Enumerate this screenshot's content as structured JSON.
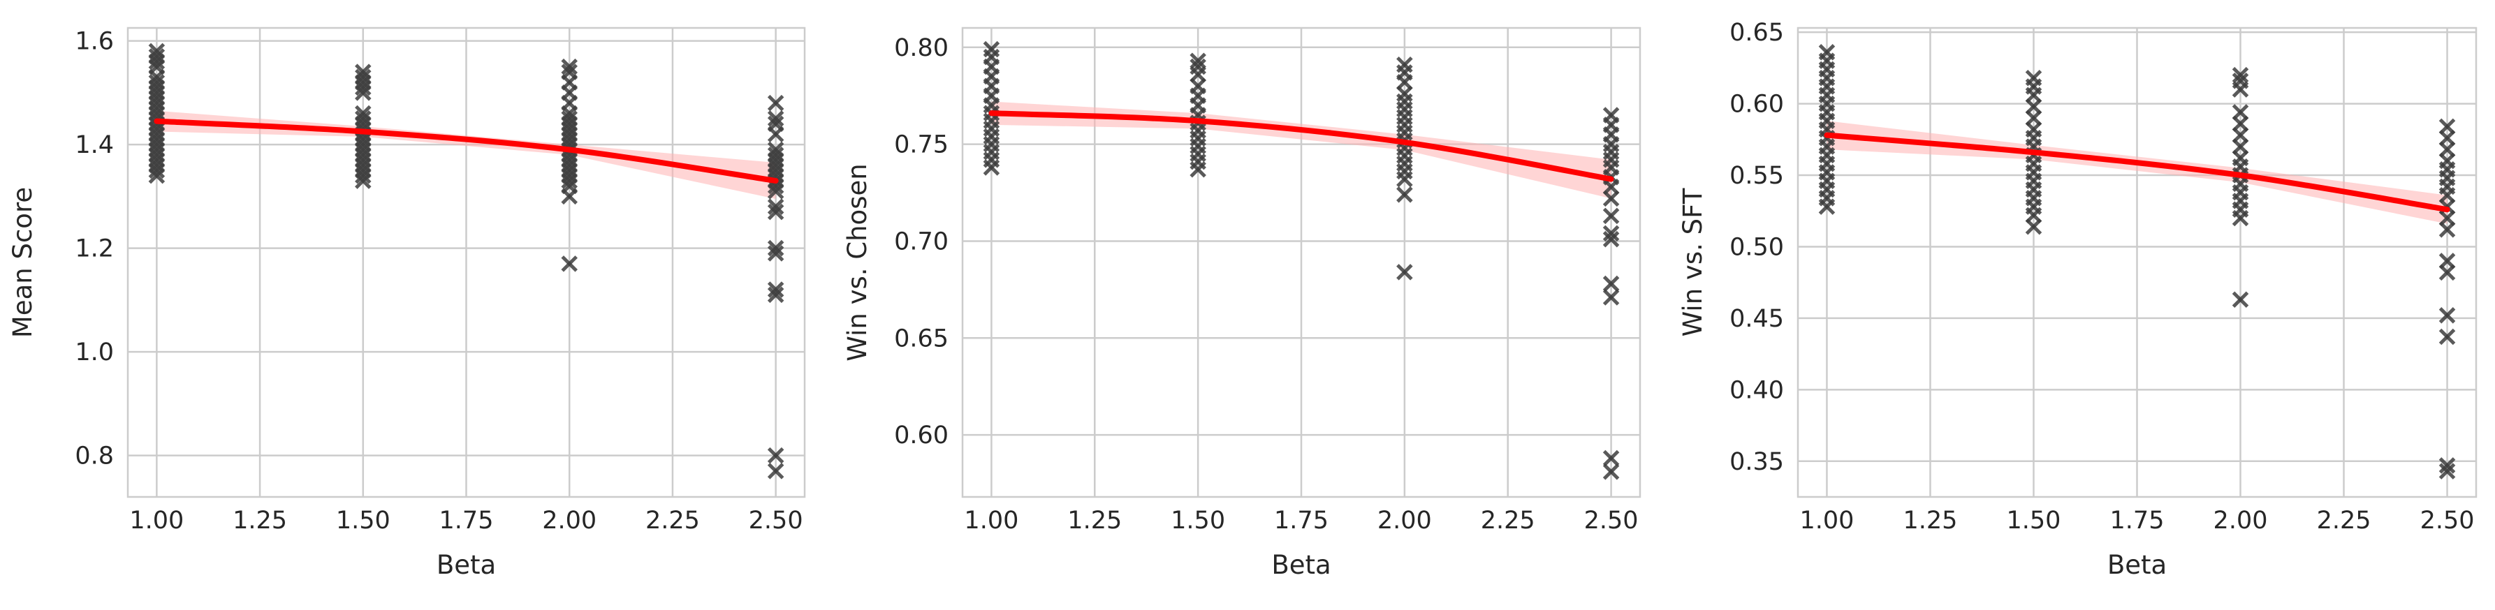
{
  "style": {
    "grid_color": "#cccccc",
    "axis_color": "#cccccc",
    "marker_color": "#3d3d3d",
    "trend_color": "#ff0000",
    "band_color": "#ffb3b3",
    "marker": "x"
  },
  "chart_data": [
    {
      "type": "scatter",
      "title": "",
      "xlabel": "Beta",
      "ylabel": "Mean Score",
      "xlim": [
        0.93,
        2.57
      ],
      "ylim": [
        0.72,
        1.625
      ],
      "xticks": [
        1.0,
        1.25,
        1.5,
        1.75,
        2.0,
        2.25,
        2.5
      ],
      "xtick_labels": [
        "1.00",
        "1.25",
        "1.50",
        "1.75",
        "2.00",
        "2.25",
        "2.50"
      ],
      "yticks": [
        0.8,
        1.0,
        1.2,
        1.4,
        1.6
      ],
      "ytick_labels": [
        "0.8",
        "1.0",
        "1.2",
        "1.4",
        "1.6"
      ],
      "grid": true,
      "points": [
        {
          "x": 1.0,
          "y": [
            1.34,
            1.35,
            1.36,
            1.37,
            1.38,
            1.39,
            1.4,
            1.41,
            1.42,
            1.43,
            1.44,
            1.45,
            1.46,
            1.47,
            1.48,
            1.49,
            1.5,
            1.51,
            1.52,
            1.53,
            1.55,
            1.56,
            1.57,
            1.58
          ]
        },
        {
          "x": 1.5,
          "y": [
            1.33,
            1.34,
            1.35,
            1.36,
            1.37,
            1.38,
            1.39,
            1.4,
            1.41,
            1.42,
            1.43,
            1.44,
            1.45,
            1.46,
            1.5,
            1.51,
            1.52,
            1.53,
            1.54
          ]
        },
        {
          "x": 2.0,
          "y": [
            1.17,
            1.3,
            1.32,
            1.33,
            1.34,
            1.35,
            1.36,
            1.37,
            1.38,
            1.39,
            1.4,
            1.41,
            1.42,
            1.43,
            1.44,
            1.45,
            1.46,
            1.48,
            1.5,
            1.52,
            1.54,
            1.55
          ]
        },
        {
          "x": 2.5,
          "y": [
            0.77,
            0.8,
            1.11,
            1.12,
            1.19,
            1.2,
            1.27,
            1.28,
            1.31,
            1.32,
            1.33,
            1.34,
            1.35,
            1.36,
            1.37,
            1.38,
            1.39,
            1.42,
            1.44,
            1.45,
            1.48
          ]
        }
      ],
      "trend": {
        "x": [
          1.0,
          1.5,
          2.0,
          2.5
        ],
        "y": [
          1.445,
          1.425,
          1.39,
          1.33
        ]
      },
      "band": {
        "x": [
          1.0,
          1.5,
          2.0,
          2.5
        ],
        "lower": [
          1.425,
          1.415,
          1.38,
          1.295
        ],
        "upper": [
          1.465,
          1.435,
          1.4,
          1.365
        ]
      }
    },
    {
      "type": "scatter",
      "title": "",
      "xlabel": "Beta",
      "ylabel": "Win vs. Chosen",
      "xlim": [
        0.93,
        2.57
      ],
      "ylim": [
        0.568,
        0.81
      ],
      "xticks": [
        1.0,
        1.25,
        1.5,
        1.75,
        2.0,
        2.25,
        2.5
      ],
      "xtick_labels": [
        "1.00",
        "1.25",
        "1.50",
        "1.75",
        "2.00",
        "2.25",
        "2.50"
      ],
      "yticks": [
        0.6,
        0.65,
        0.7,
        0.75,
        0.8
      ],
      "ytick_labels": [
        "0.60",
        "0.65",
        "0.70",
        "0.75",
        "0.80"
      ],
      "grid": true,
      "points": [
        {
          "x": 1.0,
          "y": [
            0.738,
            0.742,
            0.746,
            0.75,
            0.754,
            0.758,
            0.762,
            0.766,
            0.77,
            0.775,
            0.78,
            0.785,
            0.79,
            0.795,
            0.799
          ]
        },
        {
          "x": 1.5,
          "y": [
            0.737,
            0.741,
            0.745,
            0.749,
            0.753,
            0.757,
            0.761,
            0.765,
            0.77,
            0.775,
            0.78,
            0.786,
            0.79,
            0.793
          ]
        },
        {
          "x": 2.0,
          "y": [
            0.684,
            0.724,
            0.732,
            0.736,
            0.74,
            0.744,
            0.748,
            0.752,
            0.756,
            0.76,
            0.764,
            0.768,
            0.772,
            0.776,
            0.782,
            0.787,
            0.791
          ]
        },
        {
          "x": 2.5,
          "y": [
            0.581,
            0.588,
            0.671,
            0.678,
            0.701,
            0.704,
            0.713,
            0.722,
            0.728,
            0.733,
            0.738,
            0.742,
            0.746,
            0.75,
            0.755,
            0.76,
            0.765
          ]
        }
      ],
      "trend": {
        "x": [
          1.0,
          1.5,
          2.0,
          2.5
        ],
        "y": [
          0.766,
          0.762,
          0.751,
          0.732
        ]
      },
      "band": {
        "x": [
          1.0,
          1.5,
          2.0,
          2.5
        ],
        "lower": [
          0.76,
          0.758,
          0.747,
          0.722
        ],
        "upper": [
          0.772,
          0.766,
          0.755,
          0.742
        ]
      }
    },
    {
      "type": "scatter",
      "title": "",
      "xlabel": "Beta",
      "ylabel": "Win vs. SFT",
      "xlim": [
        0.93,
        2.57
      ],
      "ylim": [
        0.325,
        0.653
      ],
      "xticks": [
        1.0,
        1.25,
        1.5,
        1.75,
        2.0,
        2.25,
        2.5
      ],
      "xtick_labels": [
        "1.00",
        "1.25",
        "1.50",
        "1.75",
        "2.00",
        "2.25",
        "2.50"
      ],
      "yticks": [
        0.35,
        0.4,
        0.45,
        0.5,
        0.55,
        0.6,
        0.65
      ],
      "ytick_labels": [
        "0.35",
        "0.40",
        "0.45",
        "0.50",
        "0.55",
        "0.60",
        "0.65"
      ],
      "grid": true,
      "points": [
        {
          "x": 1.0,
          "y": [
            0.528,
            0.534,
            0.54,
            0.546,
            0.552,
            0.558,
            0.564,
            0.57,
            0.576,
            0.582,
            0.588,
            0.594,
            0.6,
            0.606,
            0.612,
            0.618,
            0.624,
            0.63,
            0.636
          ]
        },
        {
          "x": 1.5,
          "y": [
            0.514,
            0.522,
            0.528,
            0.534,
            0.54,
            0.546,
            0.552,
            0.558,
            0.564,
            0.57,
            0.576,
            0.582,
            0.59,
            0.598,
            0.606,
            0.612,
            0.618
          ]
        },
        {
          "x": 2.0,
          "y": [
            0.463,
            0.52,
            0.526,
            0.532,
            0.538,
            0.544,
            0.55,
            0.556,
            0.562,
            0.57,
            0.578,
            0.586,
            0.594,
            0.61,
            0.616,
            0.62
          ]
        },
        {
          "x": 2.5,
          "y": [
            0.343,
            0.347,
            0.437,
            0.452,
            0.482,
            0.49,
            0.512,
            0.52,
            0.528,
            0.536,
            0.542,
            0.548,
            0.554,
            0.56,
            0.568,
            0.576,
            0.584
          ]
        }
      ],
      "trend": {
        "x": [
          1.0,
          1.5,
          2.0,
          2.5
        ],
        "y": [
          0.578,
          0.566,
          0.55,
          0.526
        ]
      },
      "band": {
        "x": [
          1.0,
          1.5,
          2.0,
          2.5
        ],
        "lower": [
          0.568,
          0.561,
          0.545,
          0.516
        ],
        "upper": [
          0.588,
          0.571,
          0.555,
          0.536
        ]
      }
    }
  ]
}
